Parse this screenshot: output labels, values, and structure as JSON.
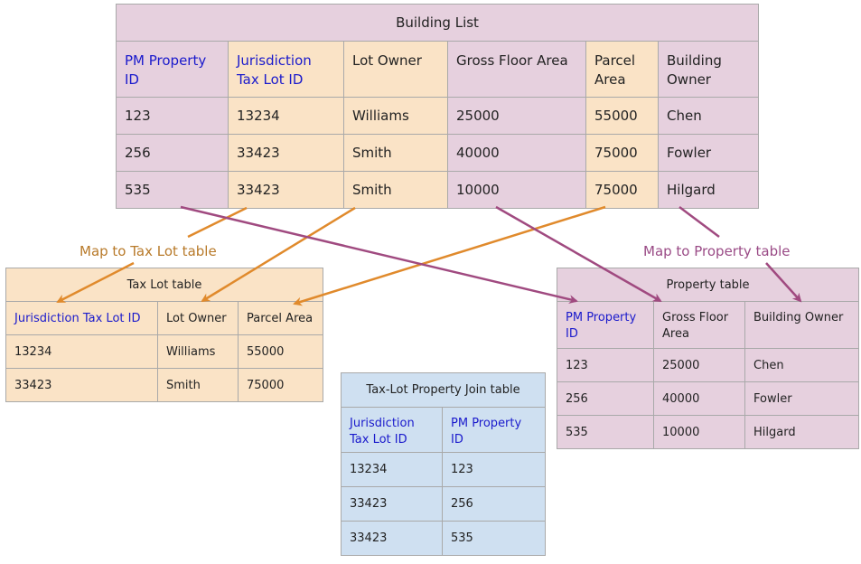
{
  "building_list": {
    "title": "Building List",
    "headers": [
      "PM Property ID",
      "Jurisdiction Tax Lot ID",
      "Lot Owner",
      "Gross Floor Area",
      "Parcel Area",
      "Building Owner"
    ],
    "rows": [
      [
        "123",
        "13234",
        "Williams",
        "25000",
        "55000",
        "Chen"
      ],
      [
        "256",
        "33423",
        "Smith",
        "40000",
        "75000",
        "Fowler"
      ],
      [
        "535",
        "33423",
        "Smith",
        "10000",
        "75000",
        "Hilgard"
      ]
    ]
  },
  "tax_lot_table": {
    "title": "Tax Lot table",
    "headers": [
      "Jurisdiction Tax Lot ID",
      "Lot Owner",
      "Parcel Area"
    ],
    "rows": [
      [
        "13234",
        "Williams",
        "55000"
      ],
      [
        "33423",
        "Smith",
        "75000"
      ]
    ]
  },
  "property_table": {
    "title": "Property table",
    "headers": [
      "PM Property ID",
      "Gross Floor Area",
      "Building Owner"
    ],
    "rows": [
      [
        "123",
        "25000",
        "Chen"
      ],
      [
        "256",
        "40000",
        "Fowler"
      ],
      [
        "535",
        "10000",
        "Hilgard"
      ]
    ]
  },
  "join_table": {
    "title": "Tax-Lot Property Join table",
    "headers": [
      "Jurisdiction Tax Lot ID",
      "PM Property ID"
    ],
    "rows": [
      [
        "13234",
        "123"
      ],
      [
        "33423",
        "256"
      ],
      [
        "33423",
        "535"
      ]
    ]
  },
  "labels": {
    "map_tax_lot": "Map to Tax Lot table",
    "map_property": "Map to Property table"
  },
  "colors": {
    "tax_lot_arrow": "#e08a2c",
    "property_arrow": "#a04a80",
    "pink_fill": "#e6d0de",
    "peach_fill": "#fae3c6",
    "blue_fill": "#cfe0f1",
    "key_text": "#1a1acc"
  }
}
